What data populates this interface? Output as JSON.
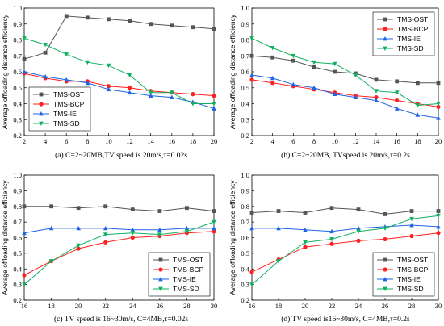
{
  "colors": {
    "TMS-OST": "#555555",
    "TMS-BCP": "#ff2020",
    "TMS-IE": "#1e64e6",
    "TMS-SD": "#10b060"
  },
  "chart_data": [
    {
      "type": "line",
      "caption": "(a) C=2~20MB,TV speed is 20m/s,τ=0.02s",
      "ylabel": "Average offloading distance efficiency",
      "xlabel": "",
      "x": [
        2,
        4,
        6,
        8,
        10,
        12,
        14,
        16,
        18,
        20
      ],
      "xlim": [
        2,
        20
      ],
      "ylim": [
        0.2,
        1.0
      ],
      "xticks": [
        "2",
        "4",
        "6",
        "8",
        "10",
        "12",
        "14",
        "16",
        "18",
        "20"
      ],
      "yticks": [
        "0.2",
        "0.3",
        "0.4",
        "0.5",
        "0.6",
        "0.7",
        "0.8",
        "0.9",
        "1.0"
      ],
      "legend_position": "bottom-left",
      "series": [
        {
          "name": "TMS-OST",
          "marker": "square",
          "values": [
            0.68,
            0.72,
            0.95,
            0.94,
            0.93,
            0.92,
            0.9,
            0.89,
            0.88,
            0.87
          ]
        },
        {
          "name": "TMS-BCP",
          "marker": "circle",
          "values": [
            0.59,
            0.56,
            0.54,
            0.54,
            0.51,
            0.5,
            0.48,
            0.47,
            0.46,
            0.45
          ]
        },
        {
          "name": "TMS-IE",
          "marker": "triangle-up",
          "values": [
            0.6,
            0.57,
            0.55,
            0.53,
            0.49,
            0.47,
            0.45,
            0.44,
            0.41,
            0.37
          ]
        },
        {
          "name": "TMS-SD",
          "marker": "triangle-down",
          "values": [
            0.81,
            0.77,
            0.71,
            0.66,
            0.64,
            0.58,
            0.47,
            0.47,
            0.4,
            0.4
          ]
        }
      ]
    },
    {
      "type": "line",
      "caption": "(b) C=2~20MB, TVspeed is 20m/s,τ=0.2s",
      "ylabel": "Average offloading distance efficiency",
      "xlabel": "",
      "x": [
        2,
        4,
        6,
        8,
        10,
        12,
        14,
        16,
        18,
        20
      ],
      "xlim": [
        2,
        20
      ],
      "ylim": [
        0.2,
        1.0
      ],
      "xticks": [
        "2",
        "4",
        "6",
        "8",
        "10",
        "12",
        "14",
        "16",
        "18",
        "20"
      ],
      "yticks": [
        "0.2",
        "0.3",
        "0.4",
        "0.5",
        "0.6",
        "0.7",
        "0.8",
        "0.9",
        "1.0"
      ],
      "legend_position": "top-right",
      "series": [
        {
          "name": "TMS-OST",
          "marker": "square",
          "values": [
            0.7,
            0.69,
            0.67,
            0.63,
            0.6,
            0.59,
            0.55,
            0.54,
            0.53,
            0.53
          ]
        },
        {
          "name": "TMS-BCP",
          "marker": "circle",
          "values": [
            0.55,
            0.53,
            0.51,
            0.49,
            0.47,
            0.45,
            0.44,
            0.42,
            0.4,
            0.38
          ]
        },
        {
          "name": "TMS-IE",
          "marker": "triangle-up",
          "values": [
            0.58,
            0.56,
            0.52,
            0.5,
            0.46,
            0.44,
            0.42,
            0.37,
            0.33,
            0.31
          ]
        },
        {
          "name": "TMS-SD",
          "marker": "triangle-down",
          "values": [
            0.81,
            0.75,
            0.7,
            0.66,
            0.65,
            0.58,
            0.48,
            0.47,
            0.39,
            0.4
          ]
        }
      ]
    },
    {
      "type": "line",
      "caption": "(c) TV speed is 16~30m/s, C=4MB,τ=0.02s",
      "ylabel": "Average offloading distance efficiency",
      "xlabel": "",
      "x": [
        16,
        18,
        20,
        22,
        24,
        26,
        28,
        30
      ],
      "xlim": [
        16,
        30
      ],
      "ylim": [
        0.2,
        1.0
      ],
      "xticks": [
        "16",
        "18",
        "20",
        "22",
        "24",
        "26",
        "28",
        "30"
      ],
      "yticks": [
        "0.2",
        "0.3",
        "0.4",
        "0.5",
        "0.6",
        "0.7",
        "0.8",
        "0.9",
        "1.0"
      ],
      "legend_position": "bottom-right",
      "series": [
        {
          "name": "TMS-OST",
          "marker": "square",
          "values": [
            0.8,
            0.8,
            0.79,
            0.8,
            0.78,
            0.77,
            0.79,
            0.77
          ]
        },
        {
          "name": "TMS-BCP",
          "marker": "circle",
          "values": [
            0.36,
            0.45,
            0.53,
            0.57,
            0.6,
            0.61,
            0.63,
            0.64
          ]
        },
        {
          "name": "TMS-IE",
          "marker": "triangle-up",
          "values": [
            0.63,
            0.66,
            0.66,
            0.66,
            0.65,
            0.65,
            0.66,
            0.66
          ]
        },
        {
          "name": "TMS-SD",
          "marker": "triangle-down",
          "values": [
            0.3,
            0.45,
            0.55,
            0.62,
            0.63,
            0.62,
            0.64,
            0.7
          ]
        }
      ]
    },
    {
      "type": "line",
      "caption": "(d) TV speed is16~30m/s, C=4MB,τ=0.2s",
      "ylabel": "Average offloading distance efficiency",
      "xlabel": "",
      "x": [
        16,
        18,
        20,
        22,
        24,
        26,
        28,
        30
      ],
      "xlim": [
        16,
        30
      ],
      "ylim": [
        0.2,
        1.0
      ],
      "xticks": [
        "16",
        "18",
        "20",
        "22",
        "24",
        "26",
        "28",
        "30"
      ],
      "yticks": [
        "0.2",
        "0.3",
        "0.4",
        "0.5",
        "0.6",
        "0.7",
        "0.8",
        "0.9",
        "1.0"
      ],
      "legend_position": "bottom-right",
      "series": [
        {
          "name": "TMS-OST",
          "marker": "square",
          "values": [
            0.76,
            0.77,
            0.76,
            0.79,
            0.78,
            0.75,
            0.77,
            0.77
          ]
        },
        {
          "name": "TMS-BCP",
          "marker": "circle",
          "values": [
            0.38,
            0.46,
            0.54,
            0.56,
            0.58,
            0.59,
            0.61,
            0.63
          ]
        },
        {
          "name": "TMS-IE",
          "marker": "triangle-up",
          "values": [
            0.66,
            0.66,
            0.65,
            0.64,
            0.66,
            0.67,
            0.68,
            0.67
          ]
        },
        {
          "name": "TMS-SD",
          "marker": "triangle-down",
          "values": [
            0.3,
            0.45,
            0.57,
            0.59,
            0.64,
            0.66,
            0.72,
            0.74
          ]
        }
      ]
    }
  ]
}
